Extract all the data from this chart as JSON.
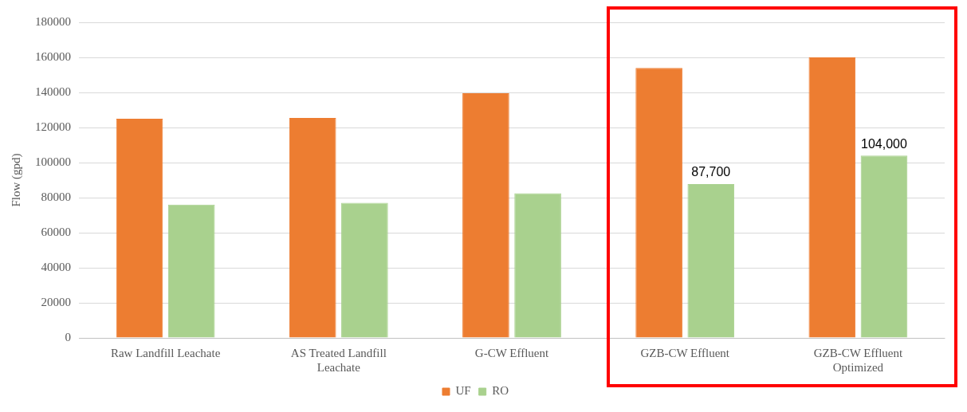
{
  "chart_data": {
    "type": "bar",
    "ylabel": "Flow (gpd)",
    "categories": [
      "Raw Landfill Leachate",
      "AS Treated Landfill Leachate",
      "G-CW Effluent",
      "GZB-CW Effluent",
      "GZB-CW Effluent Optimized"
    ],
    "series": [
      {
        "name": "UF",
        "color": "#ed7d31",
        "values": [
          125000,
          125500,
          139500,
          154000,
          160000
        ]
      },
      {
        "name": "RO",
        "color": "#a9d18e",
        "values": [
          76000,
          77000,
          82500,
          87700,
          104000
        ],
        "value_labels": [
          null,
          null,
          null,
          "87,700",
          "104,000"
        ]
      }
    ],
    "ylim": [
      0,
      180000
    ],
    "yticks": [
      0,
      20000,
      40000,
      60000,
      80000,
      100000,
      120000,
      140000,
      160000,
      180000
    ],
    "grid": "y",
    "legend": "bottom"
  }
}
